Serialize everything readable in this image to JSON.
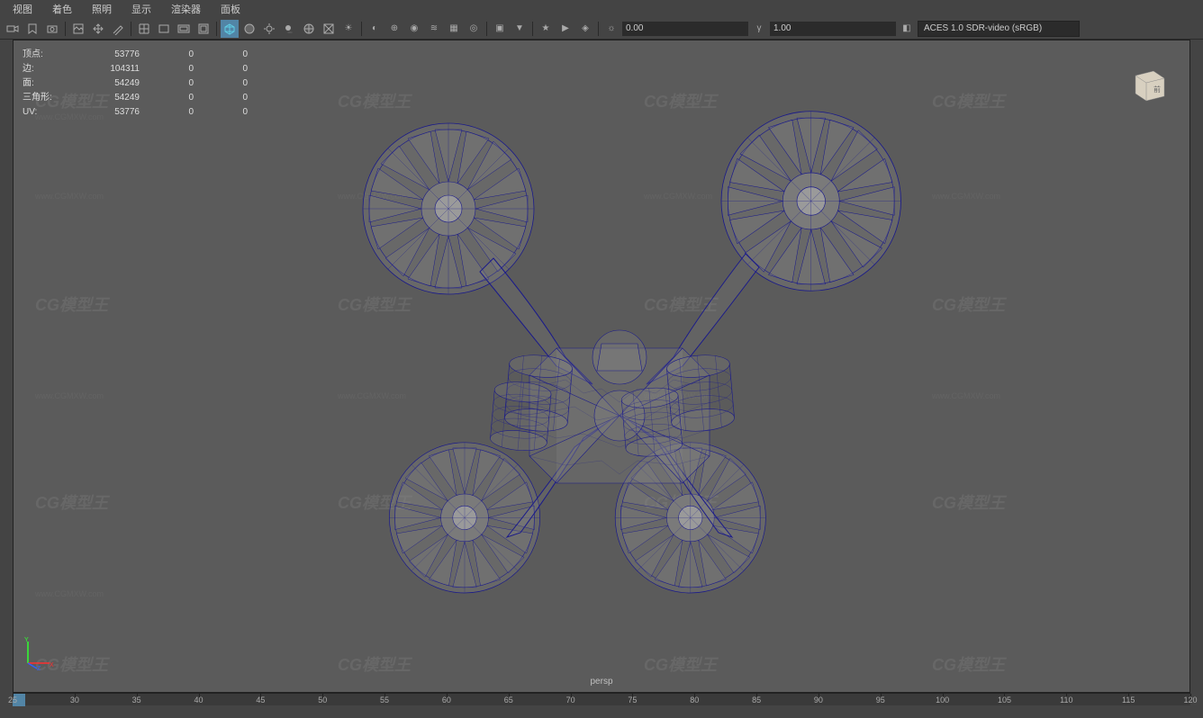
{
  "menubar": {
    "items": [
      "视图",
      "着色",
      "照明",
      "显示",
      "渲染器",
      "面板"
    ]
  },
  "toolbar": {
    "num1": "0.00",
    "num2": "1.00",
    "color_space": "ACES 1.0 SDR-video (sRGB)"
  },
  "stats": {
    "rows": [
      {
        "label": "顶点:",
        "v1": "53776",
        "v2": "0",
        "v3": "0"
      },
      {
        "label": "边:",
        "v1": "104311",
        "v2": "0",
        "v3": "0"
      },
      {
        "label": "面:",
        "v1": "54249",
        "v2": "0",
        "v3": "0"
      },
      {
        "label": "三角形:",
        "v1": "54249",
        "v2": "0",
        "v3": "0"
      },
      {
        "label": "UV:",
        "v1": "53776",
        "v2": "0",
        "v3": "0"
      }
    ]
  },
  "viewport": {
    "label": "persp",
    "bg_color": "#5b5b5b",
    "wireframe_color": "#1a1a8a",
    "selected_color": "#3030ff"
  },
  "axis": {
    "x_color": "#ff3030",
    "y_color": "#30ff30",
    "z_color": "#3060ff"
  },
  "timeline": {
    "start": 25,
    "end": 120,
    "step": 5,
    "cursor": 25,
    "ticks": [
      25,
      30,
      35,
      40,
      45,
      50,
      55,
      60,
      65,
      70,
      75,
      80,
      85,
      90,
      95,
      100,
      105,
      110,
      115,
      120
    ]
  },
  "watermark": {
    "main": "CG模型王",
    "sub": "www.CGMXW.com"
  },
  "colors": {
    "ui_bg": "#444444",
    "panel_bg": "#3a3a3a",
    "text": "#cccccc",
    "accent": "#5285a6"
  }
}
